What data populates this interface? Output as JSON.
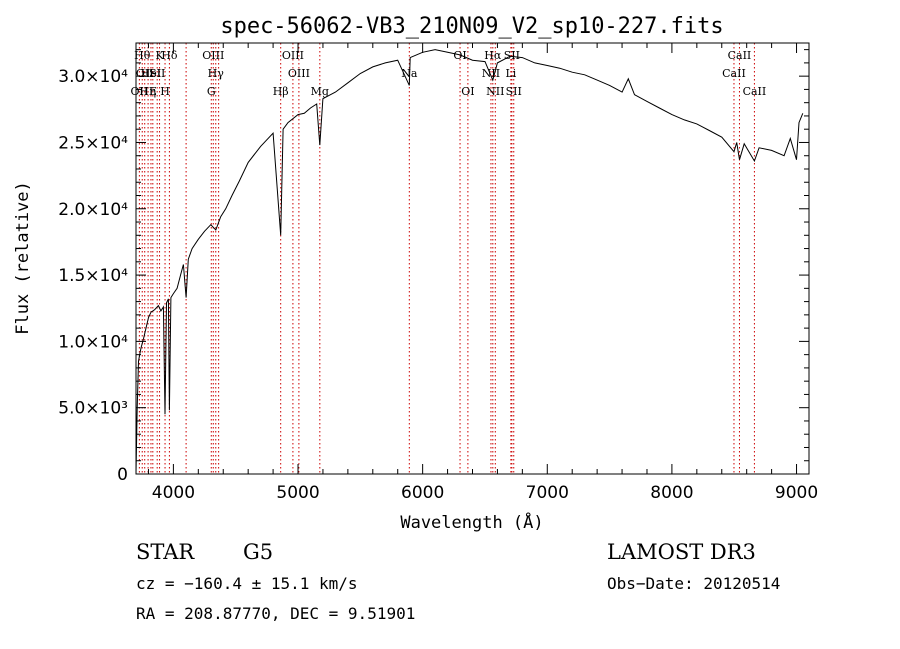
{
  "chart_data": {
    "type": "line",
    "title": "spec-56062-VB3_210N09_V2_sp10-227.fits",
    "xlabel": "Wavelength (Å)",
    "ylabel": "Flux (relative)",
    "xlim": [
      3700,
      9100
    ],
    "ylim": [
      0,
      32500
    ],
    "x_ticks": [
      {
        "value": 4000,
        "label": "4000"
      },
      {
        "value": 5000,
        "label": "5000"
      },
      {
        "value": 6000,
        "label": "6000"
      },
      {
        "value": 7000,
        "label": "7000"
      },
      {
        "value": 8000,
        "label": "8000"
      },
      {
        "value": 9000,
        "label": "9000"
      }
    ],
    "y_ticks": [
      {
        "value": 0,
        "label": "0"
      },
      {
        "value": 5000,
        "label": "5.0×10³"
      },
      {
        "value": 10000,
        "label": "1.0×10⁴"
      },
      {
        "value": 15000,
        "label": "1.5×10⁴"
      },
      {
        "value": 20000,
        "label": "2.0×10⁴"
      },
      {
        "value": 25000,
        "label": "2.5×10⁴"
      },
      {
        "value": 30000,
        "label": "3.0×10⁴"
      }
    ],
    "series": [
      {
        "name": "spectrum",
        "x": [
          3700,
          3710,
          3720,
          3730,
          3740,
          3760,
          3780,
          3800,
          3820,
          3850,
          3880,
          3900,
          3920,
          3933,
          3945,
          3960,
          3968,
          3980,
          4000,
          4030,
          4060,
          4080,
          4102,
          4120,
          4150,
          4200,
          4250,
          4300,
          4340,
          4380,
          4420,
          4470,
          4530,
          4600,
          4700,
          4800,
          4861,
          4880,
          4920,
          5000,
          5050,
          5100,
          5150,
          5175,
          5200,
          5300,
          5400,
          5500,
          5600,
          5700,
          5800,
          5893,
          5900,
          6000,
          6100,
          6200,
          6300,
          6400,
          6500,
          6563,
          6600,
          6700,
          6800,
          6900,
          7000,
          7100,
          7200,
          7300,
          7400,
          7500,
          7600,
          7650,
          7700,
          7800,
          7900,
          8000,
          8100,
          8200,
          8300,
          8400,
          8498,
          8520,
          8542,
          8580,
          8662,
          8700,
          8800,
          8900,
          8950,
          9000,
          9020,
          9050
        ],
        "y": [
          0,
          5000,
          8500,
          9000,
          9500,
          10200,
          11000,
          11800,
          12200,
          12400,
          12700,
          12300,
          12600,
          4500,
          12900,
          13200,
          4800,
          13300,
          13600,
          14000,
          15100,
          15800,
          13300,
          16200,
          17000,
          17700,
          18300,
          18800,
          18400,
          19400,
          20000,
          21000,
          22100,
          23500,
          24700,
          25700,
          18000,
          26000,
          26500,
          27100,
          27200,
          27600,
          27900,
          24800,
          28300,
          28800,
          29500,
          30200,
          30700,
          31000,
          31200,
          29300,
          31400,
          31800,
          32000,
          31800,
          31600,
          31200,
          31100,
          29700,
          31000,
          31500,
          31400,
          31000,
          30800,
          30600,
          30300,
          30100,
          29700,
          29300,
          28800,
          29800,
          28600,
          28100,
          27600,
          27100,
          26700,
          26400,
          25900,
          25400,
          24300,
          25000,
          23700,
          24900,
          23600,
          24600,
          24400,
          24000,
          25300,
          23700,
          26500,
          27200
        ]
      }
    ],
    "line_markers": [
      {
        "wavelength": 3727,
        "label": "OII",
        "row": 3
      },
      {
        "wavelength": 3750,
        "label": "Hθ",
        "row": 1
      },
      {
        "wavelength": 3770,
        "label": "OII",
        "row": 2
      },
      {
        "wavelength": 3797,
        "label": "HE",
        "row": 3
      },
      {
        "wavelength": 3820,
        "label": "HeI",
        "row": 2
      },
      {
        "wavelength": 3835,
        "label": "η",
        "row": 3
      },
      {
        "wavelength": 3870,
        "label": "SII",
        "row": 2
      },
      {
        "wavelength": 3889,
        "label": "K",
        "row": 1
      },
      {
        "wavelength": 3933,
        "label": "H",
        "row": 3
      },
      {
        "wavelength": 3968,
        "label": "Hδ",
        "row": 1
      },
      {
        "wavelength": 4102,
        "label": "",
        "row": 0
      },
      {
        "wavelength": 4304,
        "label": "G",
        "row": 3
      },
      {
        "wavelength": 4320,
        "label": "OIII",
        "row": 1
      },
      {
        "wavelength": 4340,
        "label": "Hγ",
        "row": 2
      },
      {
        "wavelength": 4363,
        "label": "",
        "row": 0
      },
      {
        "wavelength": 4861,
        "label": "Hβ",
        "row": 3
      },
      {
        "wavelength": 4959,
        "label": "OIII",
        "row": 1
      },
      {
        "wavelength": 5007,
        "label": "OIII",
        "row": 2
      },
      {
        "wavelength": 5175,
        "label": "Mg",
        "row": 3
      },
      {
        "wavelength": 5893,
        "label": "Na",
        "row": 2
      },
      {
        "wavelength": 6300,
        "label": "OI",
        "row": 1
      },
      {
        "wavelength": 6363,
        "label": "OI",
        "row": 3
      },
      {
        "wavelength": 6548,
        "label": "NII",
        "row": 2
      },
      {
        "wavelength": 6563,
        "label": "Hα",
        "row": 1
      },
      {
        "wavelength": 6583,
        "label": "NII",
        "row": 3
      },
      {
        "wavelength": 6708,
        "label": "Li",
        "row": 2
      },
      {
        "wavelength": 6716,
        "label": "SII",
        "row": 1
      },
      {
        "wavelength": 6731,
        "label": "SII",
        "row": 3
      },
      {
        "wavelength": 8498,
        "label": "CaII",
        "row": 2
      },
      {
        "wavelength": 8542,
        "label": "CaII",
        "row": 1
      },
      {
        "wavelength": 8662,
        "label": "CaII",
        "row": 3
      }
    ]
  },
  "info": {
    "class": "STAR",
    "subclass": "G5",
    "survey": "LAMOST DR3",
    "cz": "cz = −160.4 ± 15.1 km/s",
    "obs_date": "Obs−Date: 20120514",
    "coords": "RA = 208.87770, DEC =   9.51901"
  },
  "colors": {
    "spectrum": "#000000",
    "markers": "#cc0000",
    "axes": "#000000"
  }
}
